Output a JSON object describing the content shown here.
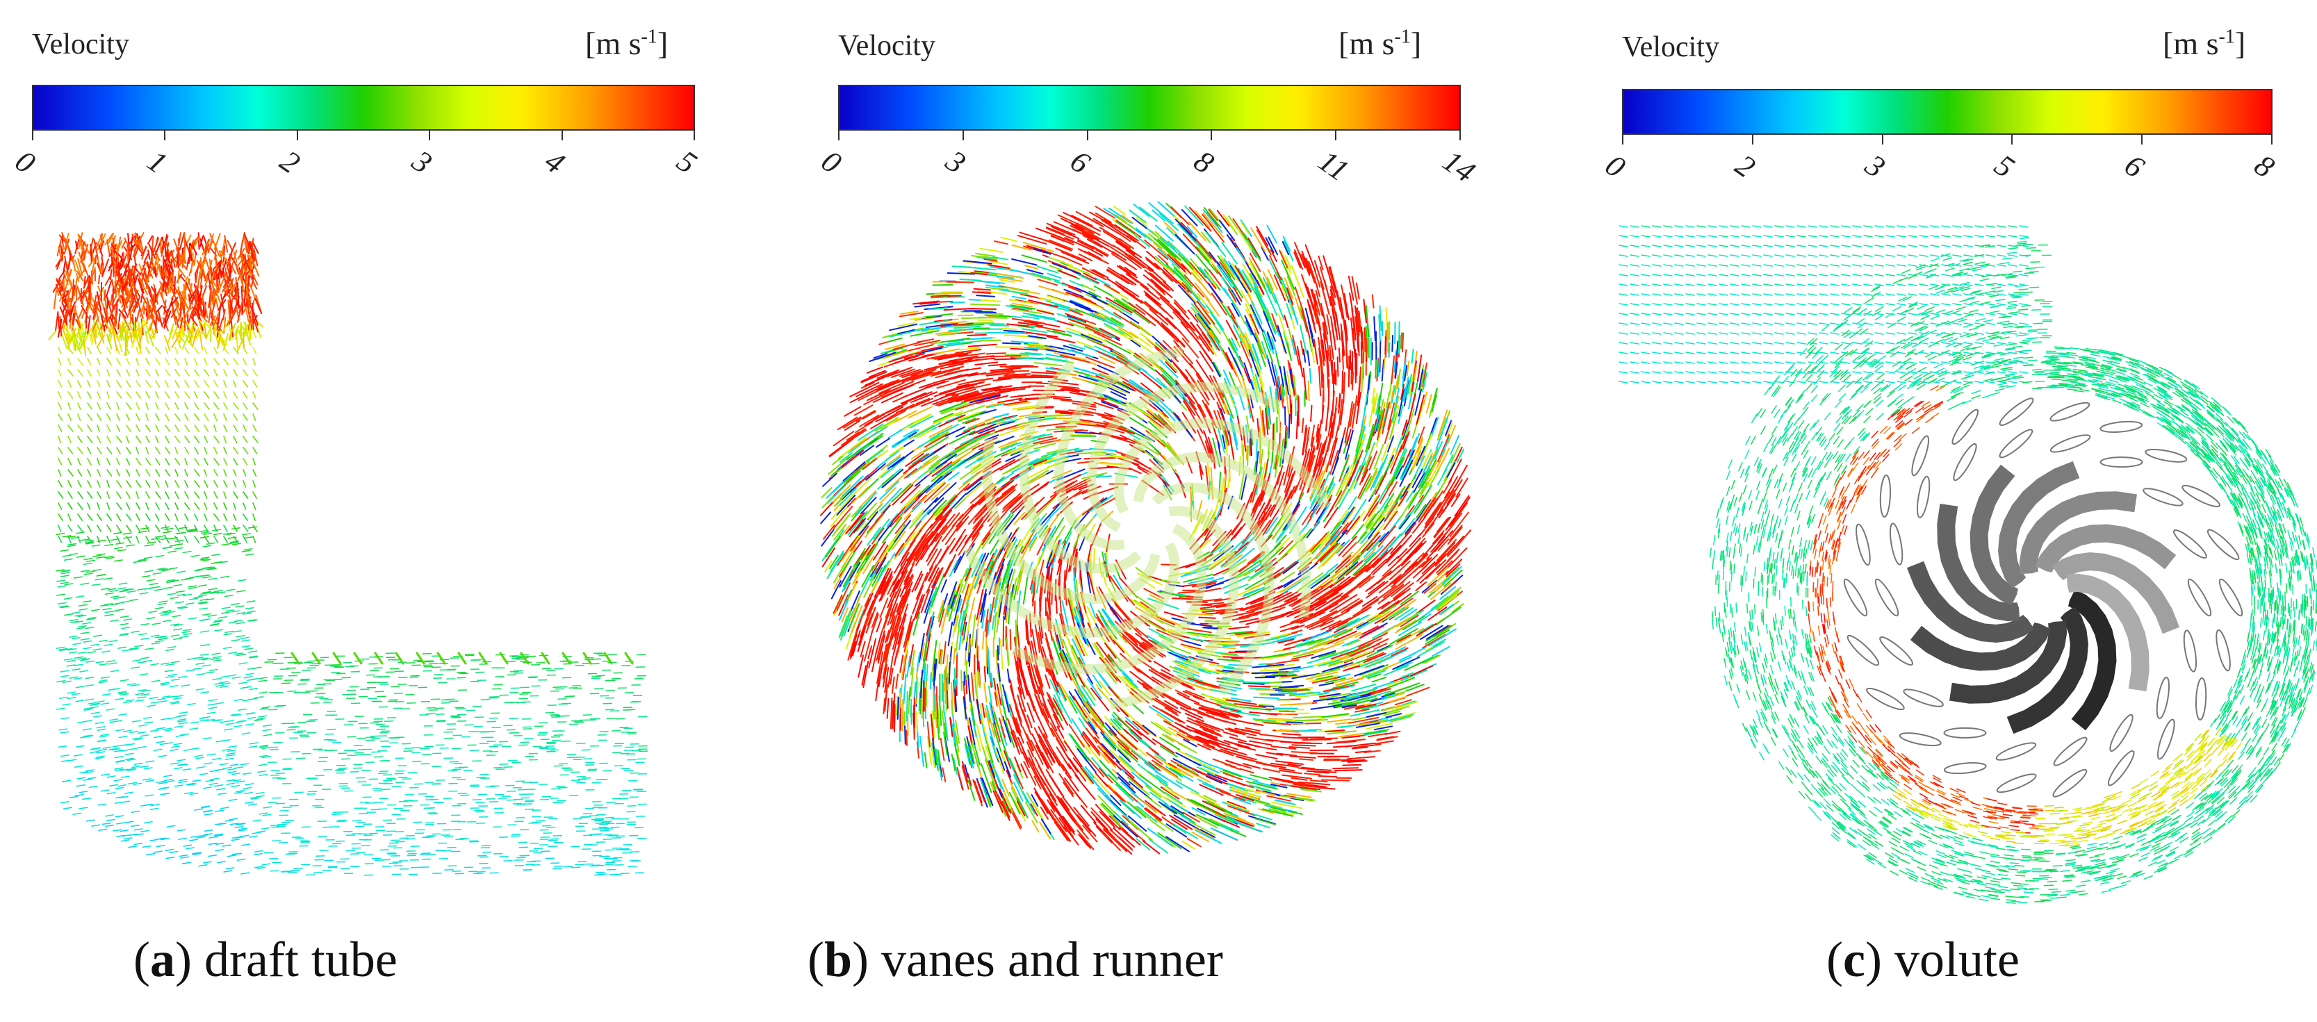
{
  "panels": [
    {
      "colorbar": {
        "title": "Velocity",
        "unit_base": "[m s",
        "unit_exp": "-1",
        "unit_close": "]",
        "ticks": [
          "0",
          "1",
          "2",
          "3",
          "4",
          "5"
        ]
      },
      "caption": {
        "open": "(",
        "letter": "a",
        "close": ")",
        "text": " draft tube"
      }
    },
    {
      "colorbar": {
        "title": "Velocity",
        "unit_base": "[m s",
        "unit_exp": "-1",
        "unit_close": "]",
        "ticks": [
          "0",
          "3",
          "6",
          "8",
          "11",
          "14"
        ]
      },
      "caption": {
        "open": "(",
        "letter": "b",
        "close": ")",
        "text": " vanes and runner"
      }
    },
    {
      "colorbar": {
        "title": "Velocity",
        "unit_base": "[m s",
        "unit_exp": "-1",
        "unit_close": "]",
        "ticks": [
          "0",
          "2",
          "3",
          "5",
          "6",
          "8"
        ]
      },
      "caption": {
        "open": "(",
        "letter": "c",
        "close": ")",
        "text": " volute"
      }
    }
  ],
  "colors": {
    "low": "#0a00c8",
    "mid": "#1fd000",
    "high": "#ff0000",
    "cyan": "#00d8ff",
    "blade": "#3a3a3a"
  }
}
